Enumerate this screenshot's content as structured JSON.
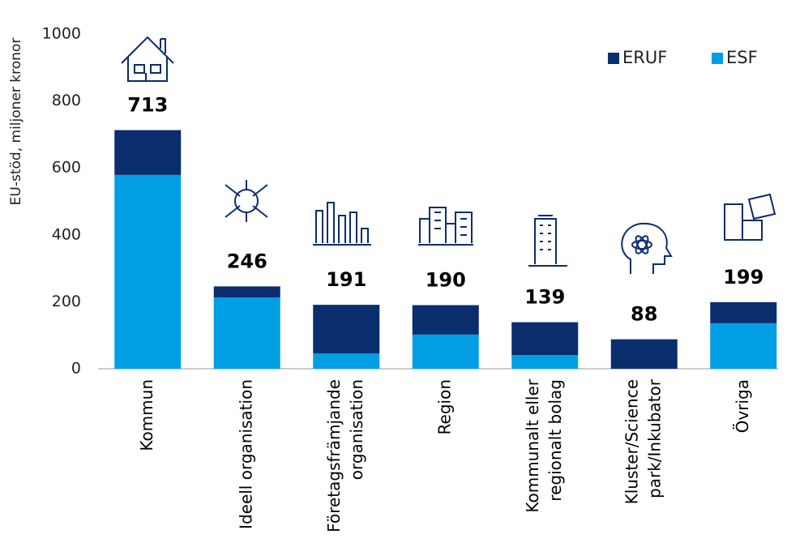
{
  "chart_data": {
    "type": "stacked_bar",
    "y_label": "EU-stöd, miljoner kronor",
    "categories": [
      [
        "Kommun"
      ],
      [
        "Ideell organisation"
      ],
      [
        "Företagsfrämjande",
        "organisation"
      ],
      [
        "Region"
      ],
      [
        "Kommunalt eller",
        "regionalt bolag"
      ],
      [
        "Kluster/Science",
        "park/Inkubator"
      ],
      [
        "Övriga"
      ]
    ],
    "series": [
      {
        "name": "ESF",
        "color": "#009fe3",
        "values": [
          579,
          213,
          46,
          102,
          41,
          0,
          136
        ]
      },
      {
        "name": "ERUF",
        "color": "#0a2d6e",
        "values": [
          134,
          33,
          145,
          88,
          98,
          88,
          63
        ]
      }
    ],
    "totals": [
      713,
      246,
      191,
      190,
      139,
      88,
      199
    ],
    "legend_order": [
      "ERUF",
      "ESF"
    ],
    "ylim": [
      0,
      1000
    ],
    "yticks": [
      0,
      200,
      400,
      600,
      800,
      1000
    ],
    "grid": false,
    "legend": "upper right"
  }
}
